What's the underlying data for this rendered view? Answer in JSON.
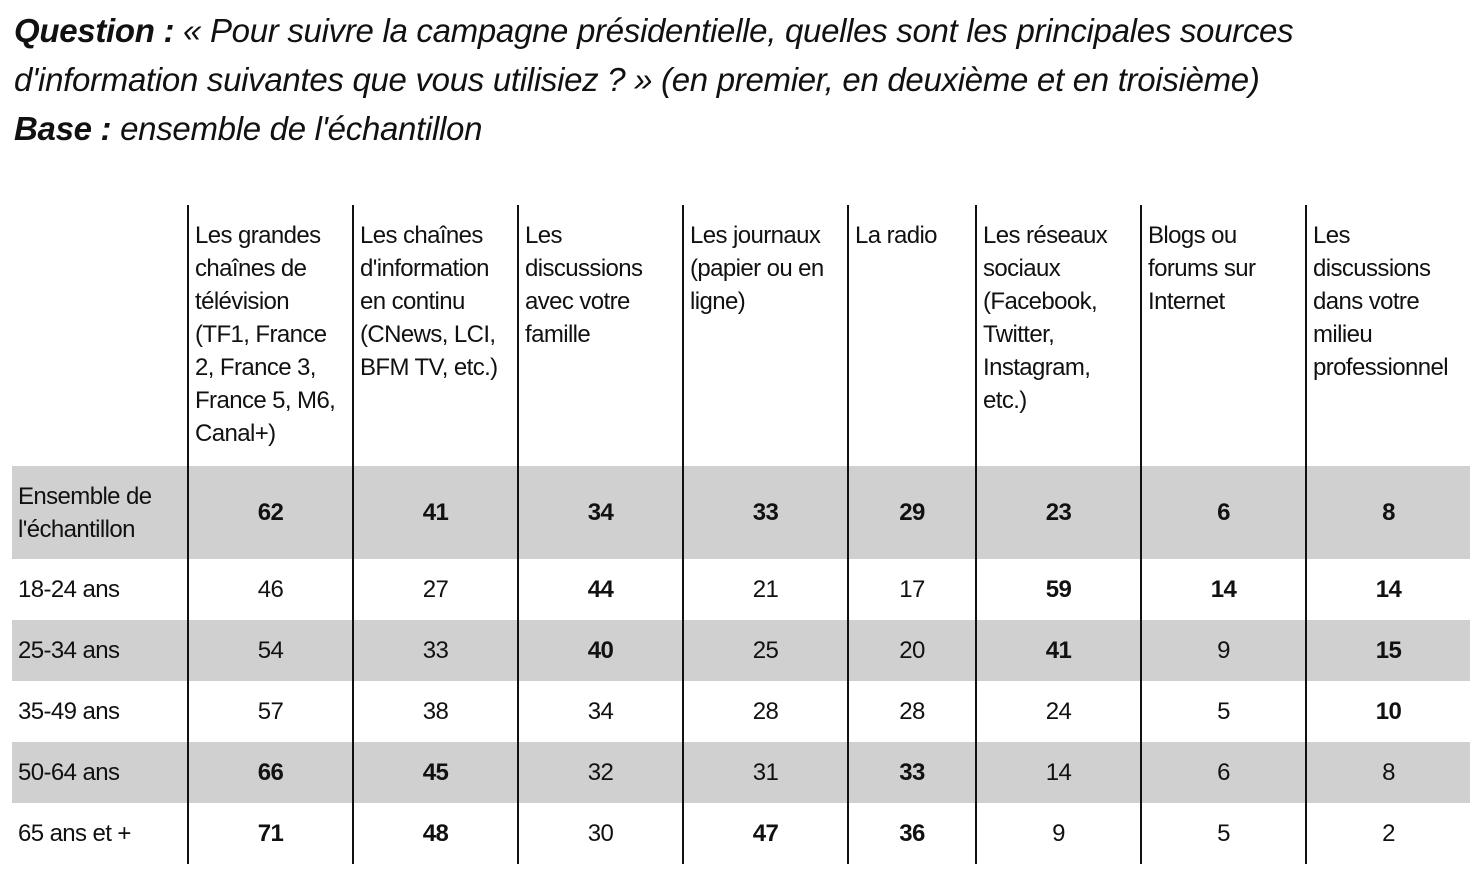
{
  "header": {
    "question": {
      "label": "Question :",
      "text": "« Pour suivre la campagne présidentielle, quelles sont les principales sources d'information suivantes que vous utilisiez ? » (en premier, en deuxième et en troisième)"
    },
    "base": {
      "label": "Base :",
      "text": "ensemble de l'échantillon"
    }
  },
  "table": {
    "columns": [
      "Les grandes chaînes de télévision (TF1, France 2, France 3, France 5, M6, Canal+)",
      "Les chaînes d'information en continu (CNews, LCI, BFM TV, etc.)",
      "Les discussions avec votre famille",
      "Les journaux (papier ou en ligne)",
      "La radio",
      "Les réseaux sociaux (Facebook, Twitter, Instagram, etc.)",
      "Blogs ou forums sur Internet",
      "Les discussions dans votre milieu professionnel"
    ],
    "rows": [
      {
        "label": "Ensemble de l'échantillon",
        "values": [
          62,
          41,
          34,
          33,
          29,
          23,
          6,
          8
        ],
        "bold": [
          true,
          true,
          true,
          true,
          true,
          true,
          true,
          true
        ],
        "shaded": true
      },
      {
        "label": "18-24 ans",
        "values": [
          46,
          27,
          44,
          21,
          17,
          59,
          14,
          14
        ],
        "bold": [
          false,
          false,
          true,
          false,
          false,
          true,
          true,
          true
        ],
        "shaded": false
      },
      {
        "label": "25-34 ans",
        "values": [
          54,
          33,
          40,
          25,
          20,
          41,
          9,
          15
        ],
        "bold": [
          false,
          false,
          true,
          false,
          false,
          true,
          false,
          true
        ],
        "shaded": true
      },
      {
        "label": "35-49 ans",
        "values": [
          57,
          38,
          34,
          28,
          28,
          24,
          5,
          10
        ],
        "bold": [
          false,
          false,
          false,
          false,
          false,
          false,
          false,
          true
        ],
        "shaded": false
      },
      {
        "label": "50-64 ans",
        "values": [
          66,
          45,
          32,
          31,
          33,
          14,
          6,
          8
        ],
        "bold": [
          true,
          true,
          false,
          false,
          true,
          false,
          false,
          false
        ],
        "shaded": true
      },
      {
        "label": "65 ans et +",
        "values": [
          71,
          48,
          30,
          47,
          36,
          9,
          5,
          2
        ],
        "bold": [
          true,
          true,
          false,
          true,
          true,
          false,
          false,
          false
        ],
        "shaded": false
      }
    ]
  }
}
